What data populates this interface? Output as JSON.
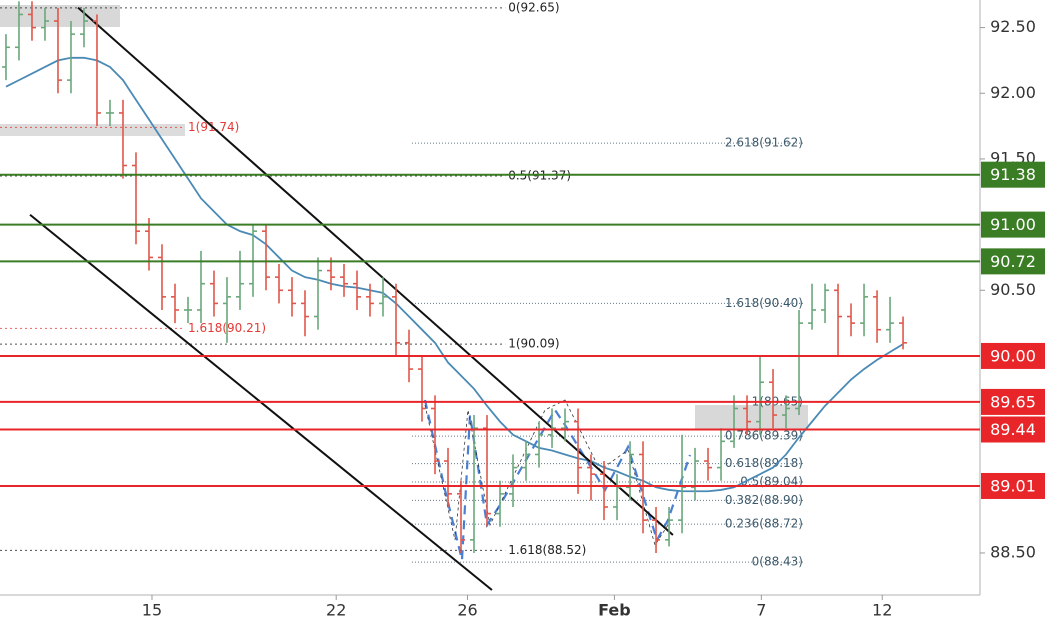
{
  "chart_data": {
    "type": "ohlc",
    "xlim": [
      -0.46,
      74.92
    ],
    "xticks": [
      {
        "value": 11.23,
        "label": "15"
      },
      {
        "value": 25.4,
        "label": "22"
      },
      {
        "value": 35.5,
        "label": "26"
      },
      {
        "value": 46.8,
        "label": "Feb"
      },
      {
        "value": 58.1,
        "label": "7"
      },
      {
        "value": 67.4,
        "label": "12"
      }
    ],
    "ylim": [
      88.18,
      92.71
    ],
    "yticks": [
      {
        "value": 92.5,
        "label": "92.50"
      },
      {
        "value": 92,
        "label": "92.00"
      },
      {
        "value": 91.5,
        "label": "91.50"
      },
      {
        "value": 90.5,
        "label": "90.50"
      },
      {
        "value": 88.5,
        "label": "88.50"
      }
    ],
    "grid": false,
    "up_color": "#6aa77b",
    "down_color": "#e0574a",
    "open": [
      92.2,
      92.35,
      92.6,
      92.5,
      92.55,
      92.1,
      92.45,
      92.55,
      91.85,
      91.85,
      91.45,
      90.95,
      90.75,
      90.45,
      90.35,
      90.35,
      90.55,
      90.4,
      90.45,
      90.55,
      90.95,
      90.6,
      90.5,
      90.4,
      90.3,
      90.65,
      90.6,
      90.55,
      90.45,
      90.4,
      90.45,
      90.1,
      89.9,
      89.6,
      89.2,
      88.95,
      88.6,
      89.45,
      88.8,
      88.95,
      89.15,
      89.25,
      89.4,
      89.45,
      89.5,
      89.15,
      89.1,
      88.85,
      89.0,
      89.25,
      88.75,
      88.6,
      88.75,
      89.0,
      89.2,
      89.15,
      89.35,
      89.6,
      89.5,
      89.8,
      89.55,
      89.6,
      90.25,
      90.35,
      90.5,
      90.3,
      90.25,
      90.45,
      90.2,
      90.25
    ],
    "high": [
      92.45,
      92.7,
      92.7,
      92.65,
      92.65,
      92.55,
      92.65,
      92.6,
      91.95,
      91.95,
      91.55,
      91.05,
      90.85,
      90.55,
      90.45,
      90.8,
      90.65,
      90.6,
      90.8,
      91.0,
      91.0,
      90.7,
      90.6,
      90.5,
      90.75,
      90.75,
      90.7,
      90.65,
      90.55,
      90.6,
      90.55,
      90.2,
      90.0,
      89.7,
      89.3,
      89.05,
      89.55,
      89.55,
      89.05,
      89.25,
      89.35,
      89.5,
      89.6,
      89.6,
      89.6,
      89.25,
      89.2,
      89.1,
      89.35,
      89.35,
      88.85,
      88.85,
      89.4,
      89.3,
      89.3,
      89.45,
      89.7,
      89.7,
      90.0,
      89.9,
      89.7,
      90.35,
      90.55,
      90.55,
      90.55,
      90.4,
      90.55,
      90.5,
      90.45,
      90.3
    ],
    "low": [
      92.1,
      92.25,
      92.4,
      92.4,
      92.0,
      92.0,
      92.35,
      91.75,
      91.75,
      91.35,
      90.85,
      90.65,
      90.35,
      90.25,
      90.25,
      90.25,
      90.3,
      90.1,
      90.35,
      90.45,
      90.5,
      90.4,
      90.3,
      90.15,
      90.2,
      90.5,
      90.45,
      90.35,
      90.3,
      90.3,
      90.0,
      89.8,
      89.5,
      89.1,
      88.85,
      88.5,
      88.5,
      88.7,
      88.7,
      88.85,
      89.05,
      89.15,
      89.3,
      89.35,
      88.95,
      88.9,
      88.75,
      88.75,
      88.9,
      88.65,
      88.5,
      88.55,
      88.65,
      88.9,
      89.05,
      89.05,
      89.3,
      89.4,
      89.4,
      89.45,
      89.45,
      89.55,
      90.2,
      90.25,
      90.0,
      90.15,
      90.15,
      90.1,
      90.1,
      90.05
    ],
    "close": [
      92.35,
      92.6,
      92.5,
      92.55,
      92.1,
      92.45,
      92.55,
      91.85,
      91.85,
      91.45,
      90.95,
      90.75,
      90.45,
      90.35,
      90.35,
      90.55,
      90.4,
      90.45,
      90.55,
      90.95,
      90.6,
      90.5,
      90.4,
      90.3,
      90.65,
      90.6,
      90.55,
      90.45,
      90.4,
      90.45,
      90.1,
      89.9,
      89.6,
      89.2,
      88.95,
      88.6,
      89.45,
      88.8,
      88.95,
      89.15,
      89.25,
      89.4,
      89.45,
      89.5,
      89.15,
      89.1,
      88.85,
      89.0,
      89.25,
      88.75,
      88.6,
      88.75,
      89.0,
      89.2,
      89.15,
      89.35,
      89.6,
      89.5,
      89.8,
      89.55,
      89.6,
      90.25,
      90.35,
      90.5,
      90.3,
      90.25,
      90.45,
      90.2,
      90.25,
      90.1
    ],
    "moving_average": {
      "color": "#4a8ab5",
      "values": [
        92.05,
        92.1,
        92.15,
        92.2,
        92.25,
        92.27,
        92.27,
        92.25,
        92.2,
        92.1,
        91.95,
        91.8,
        91.65,
        91.5,
        91.35,
        91.2,
        91.1,
        91.0,
        90.95,
        90.92,
        90.85,
        90.75,
        90.65,
        90.6,
        90.58,
        90.55,
        90.53,
        90.52,
        90.5,
        90.48,
        90.4,
        90.3,
        90.2,
        90.1,
        89.95,
        89.85,
        89.75,
        89.62,
        89.5,
        89.4,
        89.35,
        89.3,
        89.28,
        89.25,
        89.22,
        89.2,
        89.15,
        89.12,
        89.08,
        89.05,
        89.0,
        88.98,
        88.97,
        88.97,
        88.97,
        88.98,
        89.0,
        89.05,
        89.1,
        89.15,
        89.25,
        89.38,
        89.5,
        89.62,
        89.72,
        89.82,
        89.9,
        89.97,
        90.03,
        90.09
      ]
    },
    "levels": [
      {
        "value": 91.38,
        "color": "#3a7d24"
      },
      {
        "value": {
          "value": 91,
          "label": "91.00"
        },
        "color": "#3a7d24"
      },
      {
        "value": 90.72,
        "color": "#3a7d24"
      },
      {
        "value": {
          "value": 90,
          "label": "90.00"
        },
        "color": "#e8262a"
      },
      {
        "value": 89.65,
        "color": "#e8262a"
      },
      {
        "value": 89.44,
        "color": "#e8262a"
      },
      {
        "value": 89.01,
        "color": "#e8262a"
      }
    ],
    "fibonacci": [
      {
        "label": "0(92.65)",
        "value": 92.65,
        "x": [
          -0.46,
          38.4
        ],
        "color": "#222222"
      },
      {
        "label": "1(91.74)",
        "value": 91.74,
        "x": [
          -0.46,
          13.77
        ],
        "color": "#e53935"
      },
      {
        "label": "0.5(91.37)",
        "value": 91.37,
        "x": [
          -0.46,
          38.4
        ],
        "color": "#222222"
      },
      {
        "label": "1.618(90.21)",
        "value": 90.21,
        "x": [
          -0.46,
          13.77
        ],
        "color": "#e53935"
      },
      {
        "label": "1(90.09)",
        "value": 90.09,
        "x": [
          -0.46,
          38.4
        ],
        "color": "#222222"
      },
      {
        "label": "1.618(88.52)",
        "value": 88.52,
        "x": [
          -0.46,
          38.4
        ],
        "color": "#222222"
      },
      {
        "label": "2.618(91.62)",
        "value": 91.62,
        "x": [
          31.23,
          61.46
        ],
        "color": "#3d5a6c"
      },
      {
        "label": "1.618(90.40)",
        "value": 90.4,
        "x": [
          31.23,
          61.46
        ],
        "color": "#3d5a6c"
      },
      {
        "label": "1(89.65)",
        "value": 89.65,
        "x": [
          31.23,
          61.46
        ],
        "color": "#3d5a6c"
      },
      {
        "label": "0.786(89.39)",
        "value": 89.39,
        "x": [
          31.23,
          61.46
        ],
        "color": "#3d5a6c"
      },
      {
        "label": "0.618(89.18)",
        "value": 89.18,
        "x": [
          31.23,
          61.46
        ],
        "color": "#3d5a6c"
      },
      {
        "label": "0.5(89.04)",
        "value": 89.04,
        "x": [
          31.23,
          61.46
        ],
        "color": "#3d5a6c"
      },
      {
        "label": "0.382(88.90)",
        "value": 88.9,
        "x": [
          31.23,
          61.46
        ],
        "color": "#3d5a6c"
      },
      {
        "label": "0.236(88.72)",
        "value": 88.72,
        "x": [
          31.23,
          61.46
        ],
        "color": "#3d5a6c"
      },
      {
        "label": "0(88.43)",
        "value": 88.43,
        "x": [
          31.23,
          61.46
        ],
        "color": "#3d5a6c"
      }
    ],
    "trendlines": [
      {
        "x": [
          5.54,
          51.3
        ],
        "y": [
          92.652,
          88.637
        ]
      },
      {
        "x": [
          1.85,
          37.38
        ],
        "y": [
          91.075,
          88.218
        ]
      }
    ]
  }
}
